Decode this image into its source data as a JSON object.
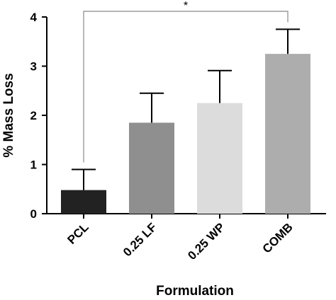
{
  "chart_data": {
    "type": "bar",
    "xlabel": "Formulation",
    "ylabel": "% Mass Loss",
    "ylim": [
      0,
      4
    ],
    "yticks": [
      0,
      1,
      2,
      3,
      4
    ],
    "categories": [
      "PCL",
      "0.25 LF",
      "0.25 WP",
      "COMB"
    ],
    "values": [
      0.48,
      1.85,
      2.25,
      3.25
    ],
    "errors": [
      0.42,
      0.6,
      0.66,
      0.5
    ],
    "bar_colors": [
      "#222222",
      "#8f8f8f",
      "#dcdcdc",
      "#adadad"
    ],
    "significance": [
      {
        "from": "PCL",
        "to": "COMB",
        "label": "*"
      }
    ],
    "grid": false,
    "legend": "none"
  }
}
